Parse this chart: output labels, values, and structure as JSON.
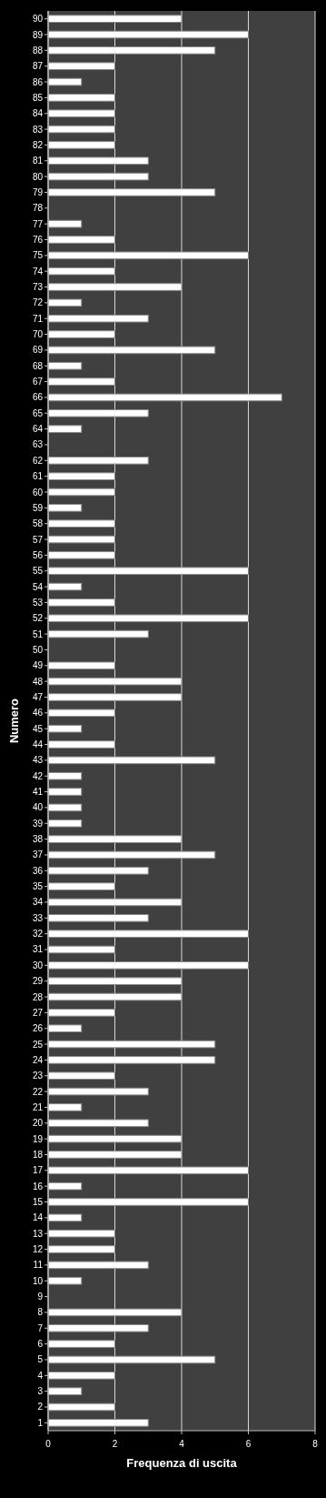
{
  "chart_data": {
    "type": "bar",
    "orientation": "horizontal",
    "xlabel": "Frequenza di uscita",
    "ylabel": "Numero",
    "categories": [
      "90",
      "89",
      "88",
      "87",
      "86",
      "85",
      "84",
      "83",
      "82",
      "81",
      "80",
      "79",
      "78",
      "77",
      "76",
      "75",
      "74",
      "73",
      "72",
      "71",
      "70",
      "69",
      "68",
      "67",
      "66",
      "65",
      "64",
      "63",
      "62",
      "61",
      "60",
      "59",
      "58",
      "57",
      "56",
      "55",
      "54",
      "53",
      "52",
      "51",
      "50",
      "49",
      "48",
      "47",
      "46",
      "45",
      "44",
      "43",
      "42",
      "41",
      "40",
      "39",
      "38",
      "37",
      "36",
      "35",
      "34",
      "33",
      "32",
      "31",
      "30",
      "29",
      "28",
      "27",
      "26",
      "25",
      "24",
      "23",
      "22",
      "21",
      "20",
      "19",
      "18",
      "17",
      "16",
      "15",
      "14",
      "13",
      "12",
      "11",
      "10",
      "9",
      "8",
      "7",
      "6",
      "5",
      "4",
      "3",
      "2",
      "1"
    ],
    "values": [
      4,
      6,
      5,
      2,
      1,
      2,
      2,
      2,
      2,
      3,
      3,
      5,
      0,
      1,
      2,
      6,
      2,
      4,
      1,
      3,
      2,
      5,
      1,
      2,
      7,
      3,
      1,
      0,
      3,
      2,
      2,
      1,
      2,
      2,
      2,
      6,
      1,
      2,
      6,
      3,
      0,
      2,
      4,
      4,
      2,
      1,
      2,
      5,
      1,
      1,
      1,
      1,
      4,
      5,
      3,
      2,
      4,
      3,
      6,
      2,
      6,
      4,
      4,
      2,
      1,
      5,
      5,
      2,
      3,
      1,
      3,
      4,
      4,
      6,
      1,
      6,
      1,
      2,
      2,
      3,
      1,
      0,
      4,
      3,
      2,
      5,
      2,
      1,
      2,
      3
    ],
    "color": "#ffffff",
    "xlim": [
      0,
      8
    ],
    "xticks": [
      0,
      2,
      4,
      6,
      8
    ],
    "grid": "x"
  }
}
